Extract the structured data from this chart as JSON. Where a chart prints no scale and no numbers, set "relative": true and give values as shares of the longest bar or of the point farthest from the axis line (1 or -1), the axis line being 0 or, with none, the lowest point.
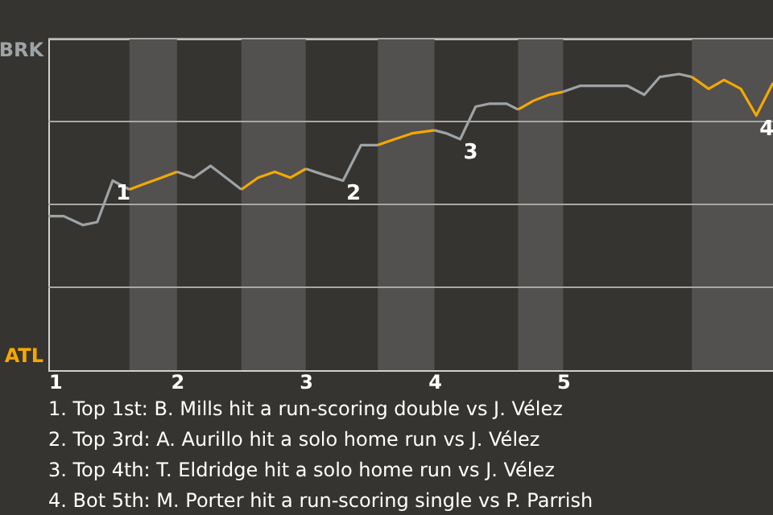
{
  "chart_data": {
    "type": "line",
    "relative": true,
    "x": [
      1.0,
      1.12,
      1.27,
      1.38,
      1.5,
      1.63,
      1.75,
      1.88,
      2.0,
      2.13,
      2.26,
      2.5,
      2.63,
      2.76,
      2.88,
      3.0,
      3.14,
      3.29,
      3.43,
      3.56,
      3.69,
      3.83,
      4.0,
      4.09,
      4.2,
      4.32,
      4.43,
      4.56,
      4.65,
      4.77,
      4.89,
      5.0,
      5.13,
      5.25,
      5.5,
      5.63,
      5.75,
      5.9,
      6.0,
      6.13,
      6.25,
      6.38,
      6.5,
      6.63
    ],
    "series": [
      {
        "color": "#9ea3a6",
        "values": [
          0.52,
          0.52,
          0.49,
          0.5,
          0.64,
          0.61,
          null,
          null,
          0.67,
          0.65,
          0.69,
          0.61,
          null,
          null,
          null,
          0.68,
          0.66,
          0.64,
          0.76,
          0.76,
          null,
          null,
          0.81,
          0.8,
          0.78,
          0.89,
          0.9,
          0.9,
          0.88,
          null,
          null,
          0.94,
          0.96,
          0.96,
          0.96,
          0.93,
          0.99,
          1,
          0.99,
          null,
          null,
          null,
          null,
          null
        ]
      },
      {
        "color": "#f5a800",
        "values": [
          null,
          null,
          null,
          null,
          null,
          0.61,
          0.63,
          0.65,
          0.67,
          null,
          null,
          0.61,
          0.65,
          0.67,
          0.65,
          0.68,
          null,
          null,
          null,
          0.76,
          0.78,
          0.8,
          0.81,
          null,
          null,
          null,
          null,
          null,
          0.88,
          0.91,
          0.93,
          0.94,
          null,
          null,
          null,
          null,
          null,
          null,
          0.99,
          0.95,
          0.98,
          0.95,
          0.86,
          0.97
        ]
      }
    ],
    "xlim": [
      1,
      6.63
    ],
    "xticks": [
      1,
      2,
      3,
      4,
      5
    ],
    "grid": "y",
    "bands": [
      {
        "axis": "x",
        "from": 1.63,
        "to": 2.0,
        "color": "#525150"
      },
      {
        "axis": "x",
        "from": 2.5,
        "to": 3.0,
        "color": "#525150"
      },
      {
        "axis": "x",
        "from": 3.56,
        "to": 4.0,
        "color": "#525150"
      },
      {
        "axis": "x",
        "from": 4.65,
        "to": 5.0,
        "color": "#525150"
      },
      {
        "axis": "x",
        "from": 6.0,
        "to": 6.63,
        "color": "#525150"
      }
    ],
    "annotations": [
      "BRK",
      "ATL",
      {
        "text": "1",
        "x": 1.5,
        "y": 0.64
      },
      {
        "text": "2",
        "x": 3.29,
        "y": 0.64
      },
      {
        "text": "3",
        "x": 4.2,
        "y": 0.78
      },
      {
        "text": "4",
        "x": 6.5,
        "y": 0.86
      },
      "1. Top 1st: B. Mills hit a run-scoring double vs J. Vélez",
      "2. Top 3rd: A. Aurillo hit a solo home run vs J. Vélez",
      "3. Top 4th: T. Eldridge hit a solo home run vs J. Vélez",
      "4. Bot 5th: M. Porter hit a run-scoring single vs P. Parrish"
    ]
  }
}
